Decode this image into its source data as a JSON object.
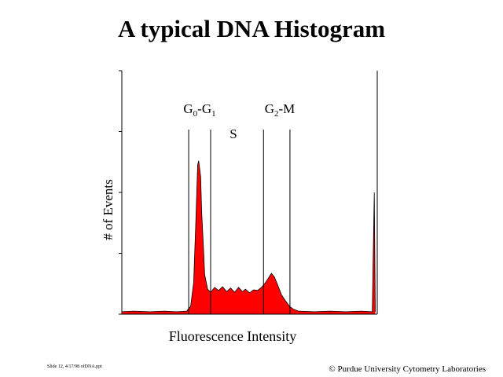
{
  "chart_data": {
    "type": "area",
    "title": "A typical DNA Histogram",
    "x_label": "Fluorescence Intensity",
    "y_label": "# of Events",
    "color": "#ff0000",
    "xlim": [
      0,
      256
    ],
    "ylim": [
      0,
      4
    ],
    "yticks": [
      0,
      1,
      2,
      3,
      4
    ],
    "x": [
      0,
      12,
      28,
      43,
      55,
      65,
      69,
      72,
      74,
      76,
      77,
      79,
      80,
      82,
      83,
      86,
      89,
      93,
      97,
      101,
      105,
      109,
      113,
      117,
      121,
      124,
      128,
      132,
      136,
      140,
      144,
      148,
      150,
      153,
      156,
      160,
      164,
      168,
      172,
      177,
      193,
      209,
      224,
      240,
      251,
      253,
      254
    ],
    "values": [
      0.04,
      0.05,
      0.04,
      0.05,
      0.04,
      0.05,
      0.13,
      0.52,
      1.42,
      2.45,
      2.52,
      2.26,
      1.68,
      1.03,
      0.65,
      0.41,
      0.36,
      0.44,
      0.39,
      0.45,
      0.37,
      0.43,
      0.36,
      0.44,
      0.37,
      0.41,
      0.35,
      0.4,
      0.39,
      0.44,
      0.52,
      0.62,
      0.67,
      0.61,
      0.49,
      0.32,
      0.22,
      0.13,
      0.08,
      0.05,
      0.04,
      0.05,
      0.04,
      0.05,
      0.04,
      2.0,
      0.04
    ],
    "gates": [
      67,
      89,
      142,
      168.5
    ],
    "annotations": [
      {
        "parts": [
          "G",
          "0",
          "-G",
          "1"
        ]
      },
      {
        "parts": [
          "S"
        ]
      },
      {
        "parts": [
          "G",
          "2",
          "-M"
        ]
      }
    ],
    "footer_left": "Slide 12, 4/17/98 ofDNA.ppt",
    "footer_right": "© Purdue University Cytometry Laboratories"
  }
}
